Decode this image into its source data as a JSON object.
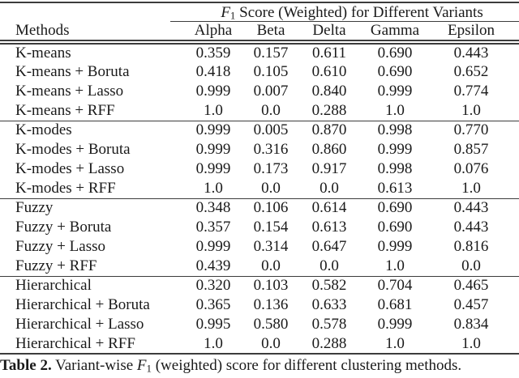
{
  "colors": {
    "background": "#ffffff",
    "text": "#1a1a1a",
    "rule": "#3c3c3c"
  },
  "table": {
    "span_header": {
      "f": "F",
      "sub": "1",
      "rest": " Score (Weighted) for Different Variants"
    },
    "methods_header": "Methods",
    "columns": [
      "Alpha",
      "Beta",
      "Delta",
      "Gamma",
      "Epsilon"
    ],
    "sections": [
      {
        "name": "K-means",
        "rows": [
          {
            "method": "K-means",
            "values": [
              "0.359",
              "0.157",
              "0.611",
              "0.690",
              "0.443"
            ]
          },
          {
            "method": "K-means + Boruta",
            "values": [
              "0.418",
              "0.105",
              "0.610",
              "0.690",
              "0.652"
            ]
          },
          {
            "method": "K-means + Lasso",
            "values": [
              "0.999",
              "0.007",
              "0.840",
              "0.999",
              "0.774"
            ]
          },
          {
            "method": "K-means + RFF",
            "values": [
              "1.0",
              "0.0",
              "0.288",
              "1.0",
              "1.0"
            ]
          }
        ]
      },
      {
        "name": "K-modes",
        "rows": [
          {
            "method": "K-modes",
            "values": [
              "0.999",
              "0.005",
              "0.870",
              "0.998",
              "0.770"
            ]
          },
          {
            "method": "K-modes + Boruta",
            "values": [
              "0.999",
              "0.316",
              "0.860",
              "0.999",
              "0.857"
            ]
          },
          {
            "method": "K-modes + Lasso",
            "values": [
              "0.999",
              "0.173",
              "0.917",
              "0.998",
              "0.076"
            ]
          },
          {
            "method": "K-modes + RFF",
            "values": [
              "1.0",
              "0.0",
              "0.0",
              "0.613",
              "1.0"
            ]
          }
        ]
      },
      {
        "name": "Fuzzy",
        "rows": [
          {
            "method": "Fuzzy",
            "values": [
              "0.348",
              "0.106",
              "0.614",
              "0.690",
              "0.443"
            ]
          },
          {
            "method": "Fuzzy + Boruta",
            "values": [
              "0.357",
              "0.154",
              "0.613",
              "0.690",
              "0.443"
            ]
          },
          {
            "method": "Fuzzy + Lasso",
            "values": [
              "0.999",
              "0.314",
              "0.647",
              "0.999",
              "0.816"
            ]
          },
          {
            "method": "Fuzzy + RFF",
            "values": [
              "0.439",
              "0.0",
              "0.0",
              "1.0",
              "0.0"
            ]
          }
        ]
      },
      {
        "name": "Hierarchical",
        "rows": [
          {
            "method": "Hierarchical",
            "values": [
              "0.320",
              "0.103",
              "0.582",
              "0.704",
              "0.465"
            ]
          },
          {
            "method": "Hierarchical + Boruta",
            "values": [
              "0.365",
              "0.136",
              "0.633",
              "0.681",
              "0.457"
            ]
          },
          {
            "method": "Hierarchical + Lasso",
            "values": [
              "0.995",
              "0.580",
              "0.578",
              "0.999",
              "0.834"
            ]
          },
          {
            "method": "Hierarchical + RFF",
            "values": [
              "1.0",
              "0.0",
              "0.288",
              "1.0",
              "1.0"
            ]
          }
        ]
      }
    ]
  },
  "caption": {
    "label": "Table 2.",
    "pre": " Variant-wise ",
    "f": "F",
    "sub": "1",
    "post": " (weighted) score for different clustering methods."
  }
}
